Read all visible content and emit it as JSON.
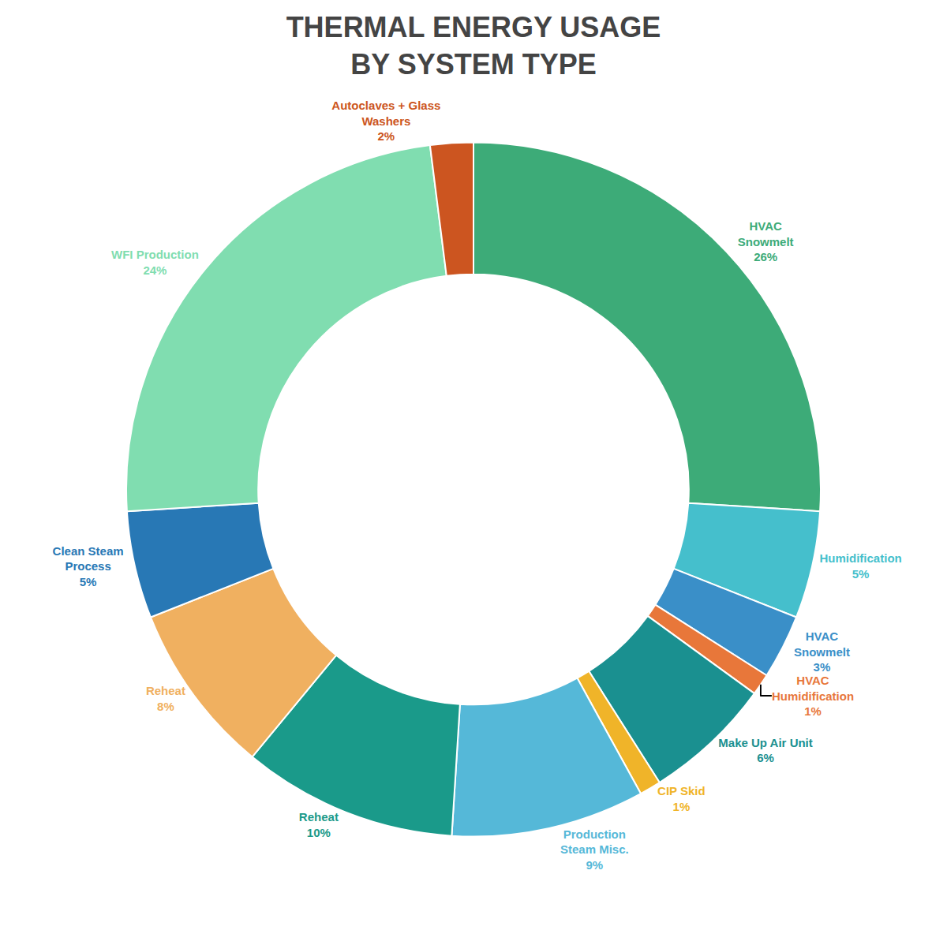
{
  "chart_data": {
    "type": "pie",
    "title": "THERMAL ENERGY USAGE\nBY SYSTEM TYPE",
    "categories": [
      "HVAC\nSnowmelt",
      "Humidification",
      "HVAC\nSnowmelt",
      "HVAC\nHumidification",
      "Make Up Air Unit",
      "CIP Skid",
      "Production\nSteam Misc.",
      "Reheat",
      "Reheat",
      "Clean Steam\nProcess",
      "WFI Production",
      "Autoclaves + Glass\nWashers"
    ],
    "values": [
      26,
      5,
      3,
      1,
      6,
      1,
      9,
      10,
      8,
      5,
      24,
      2
    ],
    "value_labels": [
      "26%",
      "5%",
      "3%",
      "1%",
      "6%",
      "1%",
      "9%",
      "10%",
      "8%",
      "5%",
      "24%",
      "2%"
    ],
    "colors": [
      "#3dab78",
      "#45bfcc",
      "#3a8fc8",
      "#e8773a",
      "#1a9090",
      "#f0b429",
      "#55b8d8",
      "#1a9a8a",
      "#f0b060",
      "#2878b5",
      "#80ddb0",
      "#cc5520"
    ],
    "data_labels": true
  }
}
